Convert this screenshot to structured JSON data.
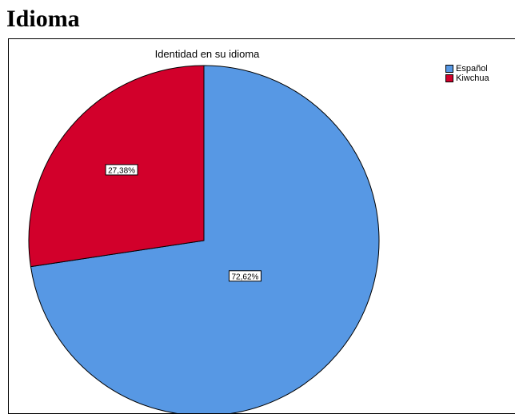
{
  "heading": "Idioma",
  "chart_data": {
    "type": "pie",
    "title": "Identidad en su idioma",
    "legend_position": "top-right",
    "slices": [
      {
        "name": "Español",
        "value": 72.62,
        "label": "72,62%",
        "color": "#5798e4"
      },
      {
        "name": "Kiwchua",
        "value": 27.38,
        "label": "27,38%",
        "color": "#d2002b"
      }
    ]
  }
}
